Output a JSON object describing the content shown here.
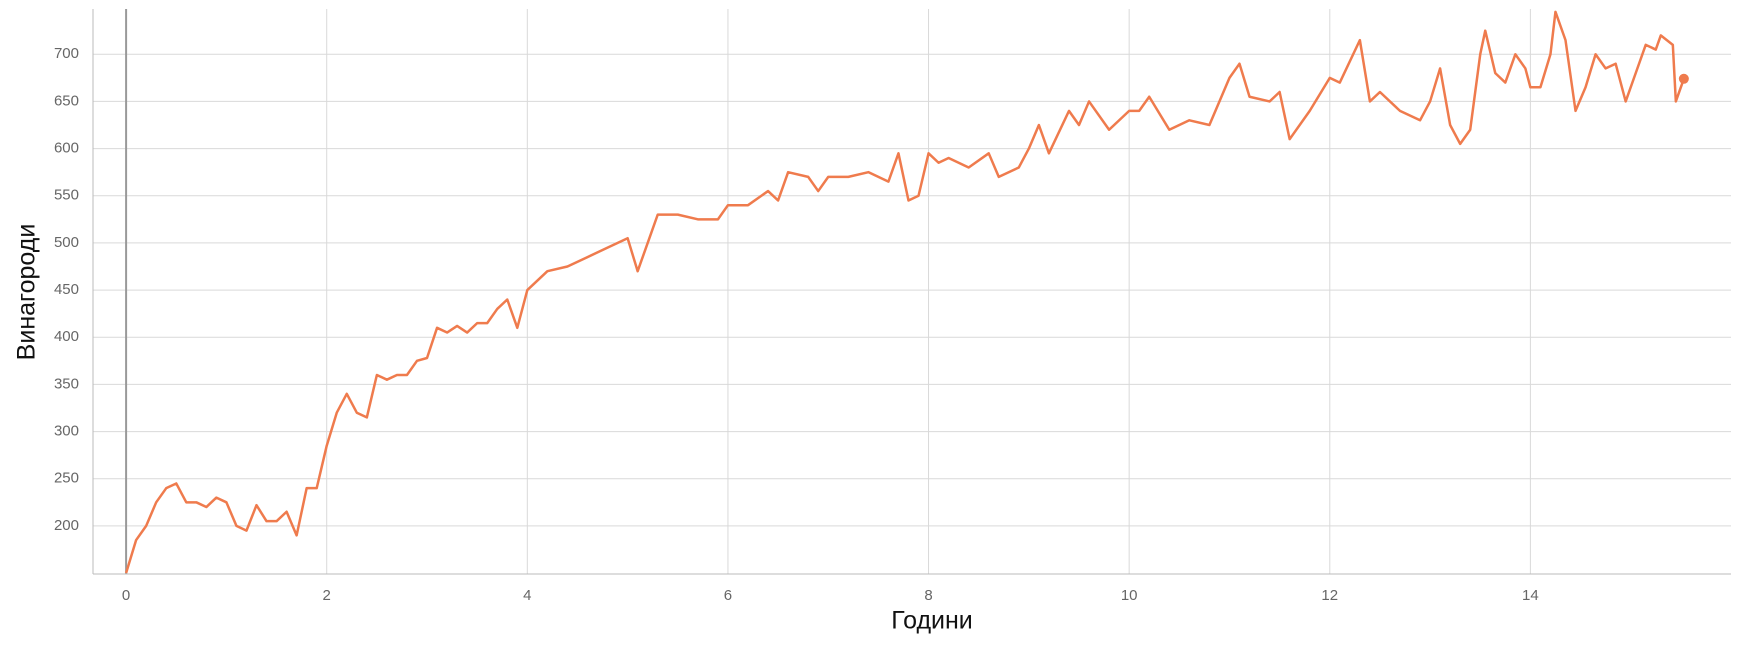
{
  "chart_data": {
    "type": "line",
    "x_label": "Години",
    "y_label": "Винагороди",
    "x": [
      0,
      0.1,
      0.2,
      0.3,
      0.4,
      0.5,
      0.6,
      0.7,
      0.8,
      0.9,
      1.0,
      1.1,
      1.2,
      1.3,
      1.4,
      1.5,
      1.6,
      1.7,
      1.8,
      1.9,
      2.0,
      2.1,
      2.2,
      2.3,
      2.4,
      2.5,
      2.6,
      2.7,
      2.8,
      2.9,
      3.0,
      3.1,
      3.2,
      3.3,
      3.4,
      3.5,
      3.6,
      3.7,
      3.8,
      3.9,
      4.0,
      4.2,
      4.4,
      4.6,
      4.8,
      5.0,
      5.1,
      5.2,
      5.3,
      5.5,
      5.7,
      5.9,
      6.0,
      6.2,
      6.4,
      6.5,
      6.6,
      6.8,
      6.9,
      7.0,
      7.2,
      7.4,
      7.6,
      7.7,
      7.8,
      7.9,
      8.0,
      8.1,
      8.2,
      8.4,
      8.6,
      8.7,
      8.9,
      9.0,
      9.1,
      9.2,
      9.4,
      9.5,
      9.6,
      9.8,
      10.0,
      10.1,
      10.2,
      10.4,
      10.6,
      10.8,
      11.0,
      11.1,
      11.2,
      11.4,
      11.5,
      11.6,
      11.8,
      12.0,
      12.1,
      12.3,
      12.4,
      12.5,
      12.7,
      12.9,
      13.0,
      13.1,
      13.2,
      13.3,
      13.4,
      13.5,
      13.55,
      13.65,
      13.75,
      13.85,
      13.95,
      14.0,
      14.1,
      14.2,
      14.25,
      14.35,
      14.45,
      14.55,
      14.65,
      14.75,
      14.85,
      14.95,
      15.05,
      15.15,
      15.25,
      15.3,
      15.42,
      15.45,
      15.53
    ],
    "series": [
      {
        "color": "#ef7b4d",
        "values": [
          150,
          185,
          200,
          225,
          240,
          245,
          225,
          225,
          220,
          230,
          225,
          200,
          195,
          222,
          205,
          205,
          215,
          190,
          240,
          240,
          285,
          320,
          340,
          320,
          315,
          360,
          355,
          360,
          360,
          375,
          378,
          410,
          405,
          412,
          405,
          415,
          415,
          430,
          440,
          410,
          450,
          470,
          475,
          485,
          495,
          505,
          470,
          500,
          530,
          530,
          525,
          525,
          540,
          540,
          555,
          545,
          575,
          570,
          555,
          570,
          570,
          575,
          565,
          595,
          545,
          550,
          595,
          585,
          590,
          580,
          595,
          570,
          580,
          600,
          625,
          595,
          640,
          625,
          650,
          620,
          640,
          640,
          655,
          620,
          630,
          625,
          675,
          690,
          655,
          650,
          660,
          610,
          640,
          675,
          670,
          715,
          650,
          660,
          640,
          630,
          650,
          685,
          625,
          605,
          620,
          700,
          725,
          680,
          670,
          700,
          685,
          665,
          665,
          700,
          745,
          715,
          640,
          665,
          700,
          685,
          690,
          650,
          680,
          710,
          705,
          720,
          710,
          650,
          674
        ]
      }
    ],
    "xlim": [
      -0.33,
      16.0
    ],
    "ylim": [
      149,
      748
    ],
    "xticks": [
      0,
      2,
      4,
      6,
      8,
      10,
      12,
      14
    ],
    "yticks": [
      200,
      250,
      300,
      350,
      400,
      450,
      500,
      550,
      600,
      650,
      700
    ],
    "grid": true
  }
}
